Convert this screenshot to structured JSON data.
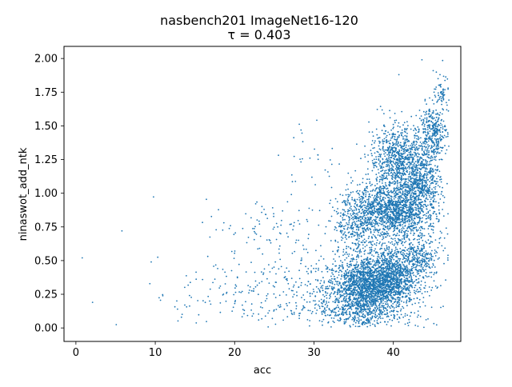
{
  "chart_data": {
    "type": "scatter",
    "title": "nasbench201 ImageNet16-120",
    "subtitle": "τ = 0.403",
    "xlabel": "acc",
    "ylabel": "ninaswot_add_ntk",
    "xlim": [
      -1.5,
      48.5
    ],
    "ylim": [
      -0.1,
      2.09
    ],
    "xticks": [
      0,
      10,
      20,
      30,
      40
    ],
    "xtick_labels": [
      "0",
      "10",
      "20",
      "30",
      "40"
    ],
    "yticks": [
      0.0,
      0.25,
      0.5,
      0.75,
      1.0,
      1.25,
      1.5,
      1.75,
      2.0
    ],
    "ytick_labels": [
      "0.00",
      "0.25",
      "0.50",
      "0.75",
      "1.00",
      "1.25",
      "1.50",
      "1.75",
      "2.00"
    ],
    "grid": false,
    "marker_color": "#1f77b4",
    "point_count": 15625,
    "approximate": true,
    "outliers": [
      {
        "x": 0.8,
        "y": 0.52
      },
      {
        "x": 2.1,
        "y": 0.19
      },
      {
        "x": 5.8,
        "y": 0.72
      },
      {
        "x": 12.8,
        "y": 0.14
      },
      {
        "x": 13.3,
        "y": 0.08
      },
      {
        "x": 43.6,
        "y": 1.99
      },
      {
        "x": 40.7,
        "y": 1.88
      }
    ],
    "clusters": [
      {
        "cx": 36.5,
        "cy": 0.3,
        "sx": 2.4,
        "sy": 0.11,
        "n": 1700
      },
      {
        "cx": 39.5,
        "cy": 0.38,
        "sx": 1.6,
        "sy": 0.1,
        "n": 700
      },
      {
        "cx": 39.5,
        "cy": 0.87,
        "sx": 2.3,
        "sy": 0.1,
        "n": 1100
      },
      {
        "cx": 35.5,
        "cy": 0.78,
        "sx": 1.6,
        "sy": 0.12,
        "n": 350
      },
      {
        "cx": 40.5,
        "cy": 1.25,
        "sx": 1.7,
        "sy": 0.13,
        "n": 750
      },
      {
        "cx": 43.5,
        "cy": 1.08,
        "sx": 1.2,
        "sy": 0.12,
        "n": 500
      },
      {
        "cx": 45.0,
        "cy": 1.45,
        "sx": 0.9,
        "sy": 0.1,
        "n": 350
      },
      {
        "cx": 43.2,
        "cy": 0.52,
        "sx": 1.0,
        "sy": 0.06,
        "n": 180
      },
      {
        "cx": 46.2,
        "cy": 1.75,
        "sx": 0.5,
        "sy": 0.05,
        "n": 70
      },
      {
        "cx": 42.0,
        "cy": 0.7,
        "sx": 2.2,
        "sy": 0.3,
        "n": 700
      },
      {
        "cx": 36.0,
        "cy": 0.1,
        "sx": 3.0,
        "sy": 0.05,
        "n": 250
      },
      {
        "cx": 25.0,
        "cy": 0.25,
        "sx": 6.0,
        "sy": 0.15,
        "n": 300
      },
      {
        "cx": 25.0,
        "cy": 0.72,
        "sx": 4.5,
        "sy": 0.12,
        "n": 90
      },
      {
        "cx": 30.0,
        "cy": 1.2,
        "sx": 3.0,
        "sy": 0.2,
        "n": 40
      }
    ]
  }
}
